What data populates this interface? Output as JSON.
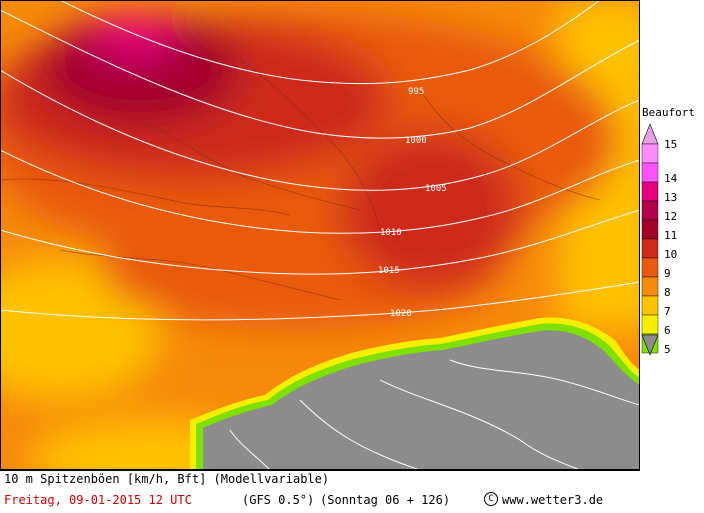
{
  "legend": {
    "title": "Beaufort",
    "classes": [
      {
        "label": "15",
        "color": "#ff8cff"
      },
      {
        "label": "14",
        "color": "#ff52ff"
      },
      {
        "label": "13",
        "color": "#e6007e"
      },
      {
        "label": "12",
        "color": "#b4004c"
      },
      {
        "label": "11",
        "color": "#a3002a"
      },
      {
        "label": "10",
        "color": "#ce2b1a"
      },
      {
        "label": "9",
        "color": "#e95a10"
      },
      {
        "label": "8",
        "color": "#f68a0a"
      },
      {
        "label": "7",
        "color": "#ffc200"
      },
      {
        "label": "6",
        "color": "#f5ee00"
      },
      {
        "label": "5",
        "color": "#7fe000"
      }
    ],
    "above_color": "#e6a0e6",
    "below_color": "#8c8c8c"
  },
  "map": {
    "land_color": "#8c8c8c",
    "isobar_labels": [
      "995",
      "1000",
      "1005",
      "1010",
      "1015",
      "1020"
    ]
  },
  "footer": {
    "variable": "10 m Spitzenböen [km/h, Bft] (Modellvariable)",
    "date": "Freitag, 09-01-2015   12 UTC",
    "model": "(GFS 0.5°)",
    "run": "(Sonntag 06 + 126)",
    "copyright_symbol": "C",
    "website": "www.wetter3.de"
  }
}
